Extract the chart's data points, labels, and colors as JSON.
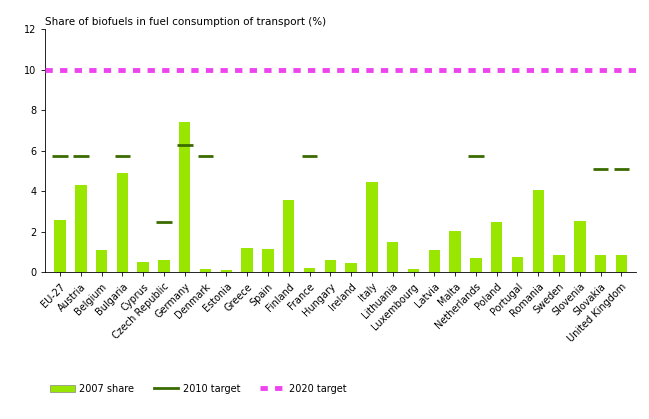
{
  "categories": [
    "EU-27",
    "Austria",
    "Belgium",
    "Bulgaria",
    "Cyprus",
    "Czech Republic",
    "Germany",
    "Denmark",
    "Estonia",
    "Greece",
    "Spain",
    "Finland",
    "France",
    "Hungary",
    "Ireland",
    "Italy",
    "Lithuania",
    "Luxembourg",
    "Latvia",
    "Malta",
    "Netherlands",
    "Poland",
    "Portugal",
    "Romania",
    "Sweden",
    "Slovenia",
    "Slovakia",
    "United Kingdom"
  ],
  "bar_values": [
    2.6,
    4.3,
    1.1,
    4.9,
    0.5,
    0.6,
    7.4,
    0.15,
    0.1,
    1.2,
    1.15,
    3.55,
    0.2,
    0.6,
    0.45,
    4.45,
    1.5,
    0.15,
    1.1,
    2.05,
    0.7,
    2.5,
    0.75,
    4.05,
    0.85,
    2.55,
    0.85,
    0.85
  ],
  "target_2010": [
    5.75,
    5.75,
    null,
    5.75,
    null,
    2.5,
    6.3,
    5.75,
    null,
    null,
    null,
    null,
    5.75,
    null,
    null,
    null,
    null,
    null,
    null,
    null,
    5.75,
    null,
    null,
    null,
    null,
    null,
    5.1,
    5.1
  ],
  "target_2020": 10.0,
  "bar_color": "#99e600",
  "target_2010_color": "#3a6b00",
  "target_2020_color": "#ee44ee",
  "title": "Share of biofuels in fuel consumption of transport (%)",
  "ylim": [
    0,
    12
  ],
  "yticks": [
    0,
    2,
    4,
    6,
    8,
    10,
    12
  ],
  "background_color": "#ffffff",
  "title_fontsize": 7.5,
  "tick_fontsize": 7,
  "legend_fontsize": 7
}
